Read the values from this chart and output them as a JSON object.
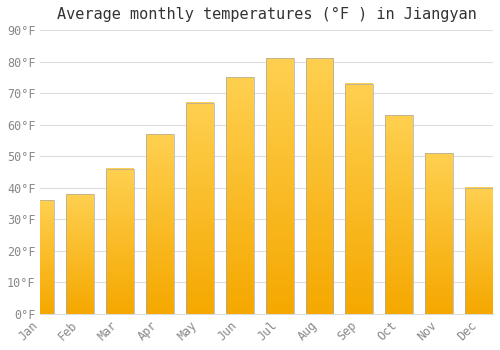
{
  "title": "Average monthly temperatures (°F ) in Jiangyan",
  "months": [
    "Jan",
    "Feb",
    "Mar",
    "Apr",
    "May",
    "Jun",
    "Jul",
    "Aug",
    "Sep",
    "Oct",
    "Nov",
    "Dec"
  ],
  "values": [
    36,
    38,
    46,
    57,
    67,
    75,
    81,
    81,
    73,
    63,
    51,
    40
  ],
  "bar_color_bright": "#FFD050",
  "bar_color_dark": "#F5A800",
  "bar_edge_color": "#AAAAAA",
  "background_color": "#FFFFFF",
  "grid_color": "#DDDDDD",
  "text_color": "#888888",
  "title_color": "#333333",
  "ylim": [
    0,
    90
  ],
  "yticks": [
    0,
    10,
    20,
    30,
    40,
    50,
    60,
    70,
    80,
    90
  ],
  "ytick_labels": [
    "0°F",
    "10°F",
    "20°F",
    "30°F",
    "40°F",
    "50°F",
    "60°F",
    "70°F",
    "80°F",
    "90°F"
  ],
  "title_fontsize": 11,
  "tick_fontsize": 8.5,
  "figsize": [
    5.0,
    3.5
  ],
  "dpi": 100,
  "bar_width": 0.7,
  "n_gradient_steps": 100
}
